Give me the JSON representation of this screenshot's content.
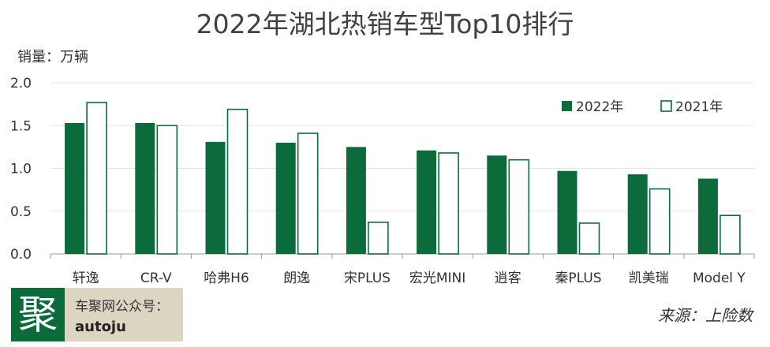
{
  "chart_data": {
    "type": "bar",
    "title": "2022年湖北热销车型Top10排行",
    "ylabel": "销量：万辆",
    "xlabel": "",
    "categories": [
      "轩逸",
      "CR-V",
      "哈弗H6",
      "朗逸",
      "宋PLUS",
      "宏光MINI",
      "逍客",
      "秦PLUS",
      "凯美瑞",
      "Model Y"
    ],
    "series": [
      {
        "name": "2022年",
        "values": [
          1.53,
          1.53,
          1.31,
          1.3,
          1.25,
          1.21,
          1.15,
          0.97,
          0.93,
          0.88
        ],
        "color": "#0b6b3a"
      },
      {
        "name": "2021年",
        "values": [
          1.77,
          1.5,
          1.69,
          1.41,
          0.37,
          1.18,
          1.1,
          0.36,
          0.76,
          0.45
        ],
        "color": "#ffffff"
      }
    ],
    "yticks": [
      "0.0",
      "0.5",
      "1.0",
      "1.5",
      "2.0"
    ],
    "ylim": [
      0,
      2.0
    ],
    "grid": true,
    "legend_position": "top-right"
  },
  "footer": {
    "logo_char": "聚",
    "brand_line1": "车聚网公众号：",
    "brand_line2": "autoju",
    "source": "来源：上险数"
  },
  "colors": {
    "accent": "#0b6b3a",
    "brand_bg": "#dcd5c1"
  }
}
